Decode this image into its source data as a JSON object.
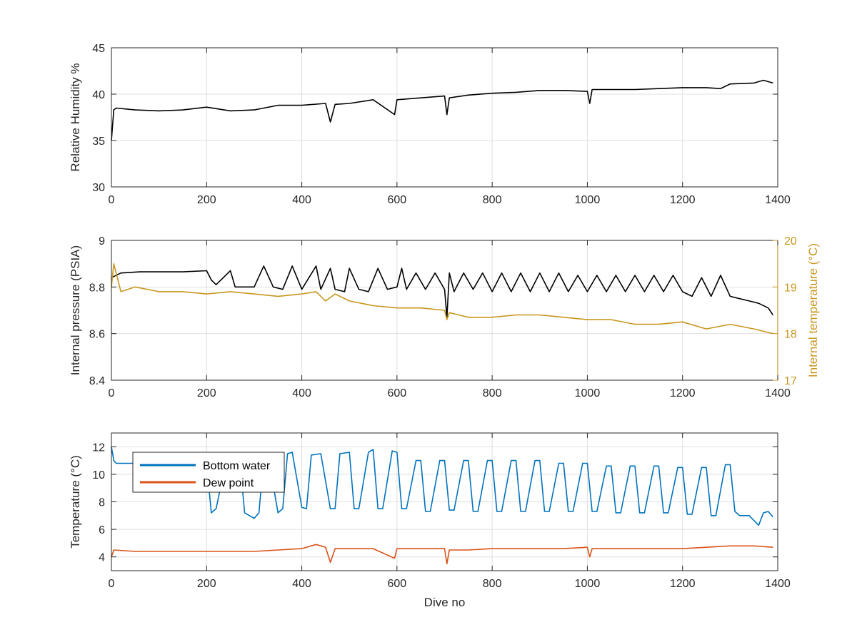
{
  "chart_data": [
    {
      "type": "line",
      "xlim": [
        0,
        1400
      ],
      "ylim": [
        30,
        45
      ],
      "xticks": [
        0,
        200,
        400,
        600,
        800,
        1000,
        1200,
        1400
      ],
      "yticks": [
        30,
        35,
        40,
        45
      ],
      "ylabel": "Relative Humidity %",
      "xlabel": "",
      "grid": true,
      "series": [
        {
          "color": "#000000",
          "x": [
            0,
            5,
            10,
            50,
            100,
            150,
            200,
            250,
            300,
            350,
            400,
            450,
            460,
            470,
            500,
            550,
            595,
            600,
            650,
            700,
            705,
            710,
            750,
            800,
            850,
            900,
            950,
            1000,
            1005,
            1010,
            1050,
            1100,
            1150,
            1200,
            1250,
            1280,
            1300,
            1350,
            1370,
            1390
          ],
          "y": [
            35,
            38.3,
            38.5,
            38.3,
            38.2,
            38.3,
            38.6,
            38.2,
            38.3,
            38.8,
            38.8,
            39.0,
            37.0,
            38.9,
            39.0,
            39.4,
            37.8,
            39.4,
            39.6,
            39.8,
            37.8,
            39.6,
            39.9,
            40.1,
            40.2,
            40.4,
            40.4,
            40.3,
            39.0,
            40.5,
            40.5,
            40.5,
            40.6,
            40.7,
            40.7,
            40.6,
            41.1,
            41.2,
            41.5,
            41.2
          ]
        }
      ]
    },
    {
      "type": "line",
      "xlim": [
        0,
        1400
      ],
      "ylim": [
        8.4,
        9
      ],
      "y2lim": [
        17,
        20
      ],
      "xticks": [
        0,
        200,
        400,
        600,
        800,
        1000,
        1200,
        1400
      ],
      "yticks": [
        8.4,
        8.6,
        8.8,
        9
      ],
      "y2ticks": [
        17,
        18,
        19,
        20
      ],
      "ylabel": "Internal pressure (PSIA)",
      "y2label": "Internal temperature (°C)",
      "y2color": "#c8961e",
      "grid": true,
      "series": [
        {
          "axis": "left",
          "color": "#000000",
          "x": [
            0,
            20,
            60,
            100,
            150,
            200,
            210,
            220,
            250,
            260,
            280,
            300,
            320,
            340,
            360,
            380,
            400,
            430,
            440,
            460,
            470,
            490,
            500,
            520,
            540,
            560,
            580,
            600,
            610,
            620,
            640,
            660,
            680,
            700,
            705,
            710,
            720,
            740,
            760,
            780,
            800,
            820,
            840,
            860,
            880,
            900,
            920,
            940,
            960,
            980,
            1000,
            1020,
            1040,
            1060,
            1080,
            1100,
            1120,
            1140,
            1160,
            1180,
            1200,
            1220,
            1240,
            1260,
            1280,
            1300,
            1320,
            1340,
            1360,
            1380,
            1390
          ],
          "y": [
            8.84,
            8.86,
            8.865,
            8.865,
            8.865,
            8.87,
            8.83,
            8.81,
            8.87,
            8.8,
            8.8,
            8.8,
            8.89,
            8.8,
            8.79,
            8.89,
            8.79,
            8.89,
            8.79,
            8.88,
            8.79,
            8.78,
            8.88,
            8.79,
            8.78,
            8.88,
            8.79,
            8.8,
            8.88,
            8.79,
            8.86,
            8.79,
            8.86,
            8.79,
            8.67,
            8.86,
            8.78,
            8.86,
            8.79,
            8.86,
            8.78,
            8.86,
            8.78,
            8.86,
            8.78,
            8.86,
            8.78,
            8.86,
            8.78,
            8.85,
            8.78,
            8.85,
            8.78,
            8.85,
            8.78,
            8.85,
            8.78,
            8.85,
            8.78,
            8.85,
            8.78,
            8.76,
            8.84,
            8.76,
            8.85,
            8.76,
            8.75,
            8.74,
            8.73,
            8.71,
            8.68
          ]
        },
        {
          "axis": "right",
          "color": "#c8961e",
          "x": [
            0,
            5,
            20,
            50,
            100,
            150,
            200,
            250,
            300,
            350,
            400,
            430,
            450,
            470,
            500,
            550,
            600,
            650,
            700,
            705,
            710,
            750,
            800,
            850,
            900,
            950,
            1000,
            1050,
            1100,
            1150,
            1200,
            1250,
            1300,
            1350,
            1390
          ],
          "y": [
            19.0,
            19.5,
            18.9,
            19.0,
            18.9,
            18.9,
            18.85,
            18.9,
            18.85,
            18.8,
            18.85,
            18.9,
            18.7,
            18.85,
            18.7,
            18.6,
            18.55,
            18.55,
            18.5,
            18.3,
            18.45,
            18.35,
            18.35,
            18.4,
            18.4,
            18.35,
            18.3,
            18.3,
            18.2,
            18.2,
            18.25,
            18.1,
            18.2,
            18.1,
            18.0
          ]
        }
      ]
    },
    {
      "type": "line",
      "xlim": [
        0,
        1400
      ],
      "ylim": [
        3,
        13
      ],
      "xticks": [
        0,
        200,
        400,
        600,
        800,
        1000,
        1200,
        1400
      ],
      "yticks": [
        4,
        6,
        8,
        10,
        12
      ],
      "ylabel": "Temperature (°C)",
      "xlabel": "Dive no",
      "grid": true,
      "legend": "top-left",
      "series": [
        {
          "name": "Bottom water",
          "color": "#0072bd",
          "x": [
            0,
            5,
            10,
            50,
            100,
            150,
            200,
            205,
            210,
            220,
            240,
            250,
            270,
            280,
            300,
            310,
            320,
            330,
            350,
            360,
            370,
            380,
            400,
            410,
            420,
            440,
            460,
            470,
            480,
            500,
            510,
            520,
            540,
            550,
            560,
            570,
            590,
            600,
            610,
            620,
            640,
            650,
            660,
            670,
            690,
            700,
            710,
            720,
            740,
            750,
            760,
            770,
            790,
            800,
            810,
            820,
            840,
            850,
            860,
            870,
            890,
            900,
            910,
            920,
            940,
            950,
            960,
            970,
            990,
            1000,
            1010,
            1020,
            1040,
            1050,
            1060,
            1070,
            1090,
            1100,
            1110,
            1120,
            1140,
            1150,
            1160,
            1170,
            1190,
            1200,
            1210,
            1220,
            1240,
            1250,
            1260,
            1270,
            1290,
            1300,
            1310,
            1320,
            1340,
            1360,
            1370,
            1380,
            1390
          ],
          "y": [
            12.0,
            11.0,
            10.8,
            10.8,
            10.6,
            10.7,
            10.7,
            9.0,
            7.2,
            7.5,
            10.8,
            11.0,
            10.9,
            7.2,
            6.8,
            7.2,
            11.2,
            11.2,
            7.2,
            7.5,
            11.5,
            11.6,
            7.6,
            7.5,
            11.4,
            11.5,
            7.5,
            7.5,
            11.5,
            11.6,
            7.5,
            7.5,
            11.6,
            11.8,
            7.5,
            7.5,
            11.7,
            11.6,
            7.5,
            7.5,
            11.0,
            11.0,
            7.3,
            7.3,
            11.0,
            11.0,
            7.4,
            7.4,
            11.0,
            11.0,
            7.3,
            7.3,
            11.0,
            11.0,
            7.3,
            7.3,
            11.0,
            11.0,
            7.3,
            7.3,
            11.0,
            11.0,
            7.3,
            7.3,
            10.8,
            10.8,
            7.3,
            7.3,
            10.8,
            10.8,
            7.3,
            7.3,
            10.6,
            10.6,
            7.2,
            7.2,
            10.6,
            10.6,
            7.2,
            7.2,
            10.6,
            10.6,
            7.2,
            7.2,
            10.5,
            10.5,
            7.1,
            7.1,
            10.5,
            10.5,
            7.0,
            7.0,
            10.7,
            10.7,
            7.3,
            7.0,
            7.0,
            6.3,
            7.2,
            7.3,
            6.9
          ]
        },
        {
          "name": "Dew point",
          "color": "#d95319",
          "x": [
            0,
            5,
            50,
            100,
            150,
            200,
            250,
            300,
            350,
            400,
            430,
            450,
            460,
            470,
            500,
            550,
            595,
            600,
            650,
            700,
            705,
            710,
            750,
            800,
            850,
            900,
            950,
            1000,
            1005,
            1010,
            1050,
            1100,
            1150,
            1200,
            1250,
            1300,
            1350,
            1390
          ],
          "y": [
            4.0,
            4.5,
            4.4,
            4.4,
            4.4,
            4.4,
            4.4,
            4.4,
            4.5,
            4.6,
            4.9,
            4.7,
            3.6,
            4.6,
            4.6,
            4.6,
            3.9,
            4.6,
            4.6,
            4.6,
            3.5,
            4.5,
            4.5,
            4.6,
            4.6,
            4.6,
            4.6,
            4.7,
            4.0,
            4.6,
            4.6,
            4.6,
            4.6,
            4.6,
            4.7,
            4.8,
            4.8,
            4.7
          ]
        }
      ]
    }
  ]
}
